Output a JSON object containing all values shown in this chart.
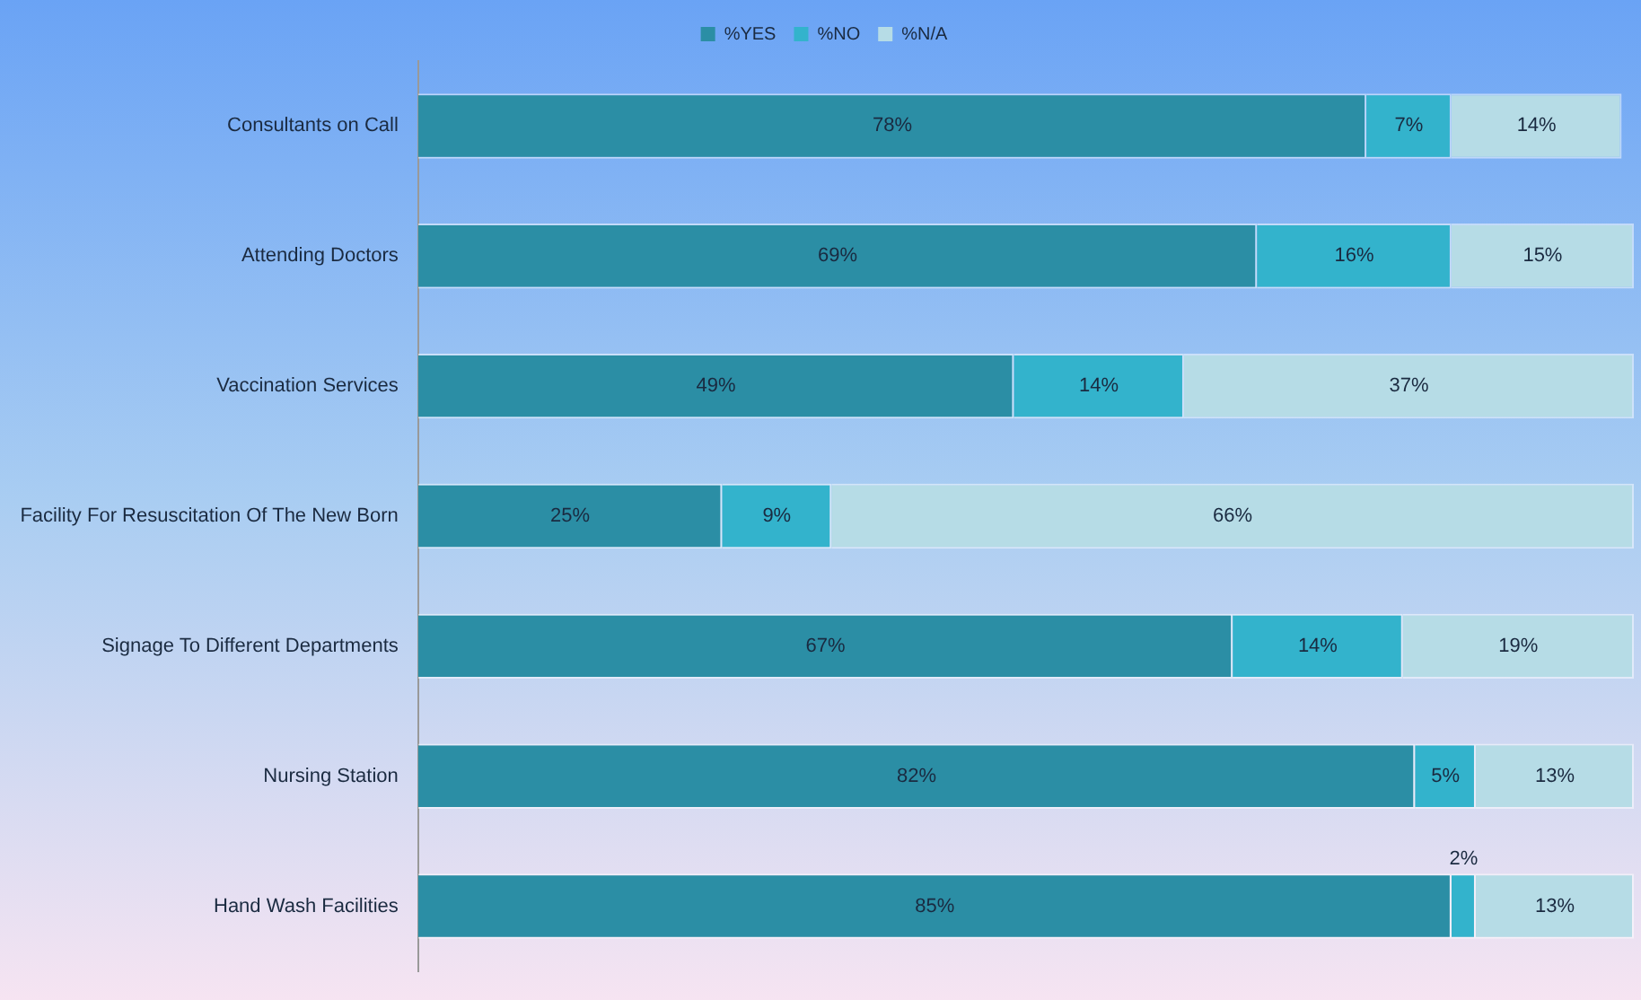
{
  "chart_data": {
    "type": "bar",
    "orientation": "horizontal",
    "stacked": true,
    "categories": [
      "Consultants on Call",
      "Attending Doctors",
      "Vaccination Services",
      "Facility For Resuscitation Of The New Born",
      "Signage To Different Departments",
      "Nursing Station",
      "Hand Wash Facilities"
    ],
    "series": [
      {
        "name": "%YES",
        "color": "#2b8ea5",
        "values": [
          78,
          69,
          49,
          25,
          67,
          82,
          85
        ],
        "value_labels": [
          "78%",
          "69%",
          "49%",
          "25%",
          "67%",
          "82%",
          "85%"
        ]
      },
      {
        "name": "%NO",
        "color": "#33b3cc",
        "values": [
          7,
          16,
          14,
          9,
          14,
          5,
          2
        ],
        "value_labels": [
          "7%",
          "16%",
          "14%",
          "9%",
          "14%",
          "5%",
          "2%"
        ]
      },
      {
        "name": "%N/A",
        "color": "#b6dce6",
        "values": [
          14,
          15,
          37,
          66,
          19,
          13,
          13
        ],
        "value_labels": [
          "14%",
          "15%",
          "37%",
          "66%",
          "19%",
          "13%",
          "13%"
        ]
      }
    ],
    "legend": "top",
    "tick_labels": "y",
    "grid": false
  }
}
